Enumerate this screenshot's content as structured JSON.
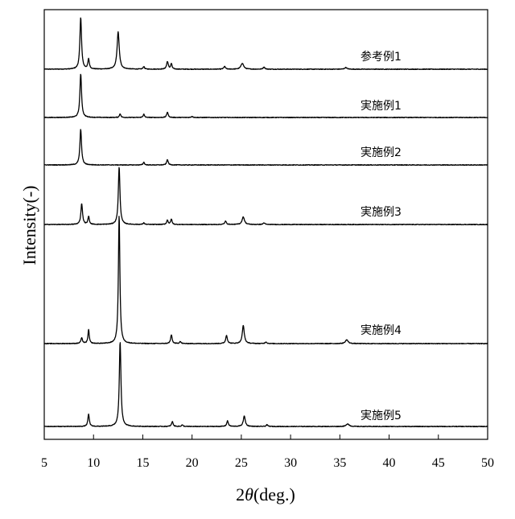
{
  "chart_data": {
    "type": "line",
    "title": "",
    "xlabel": "2θ(deg.)",
    "ylabel": "Intensity(-)",
    "xlim": [
      5,
      50
    ],
    "x_ticks": [
      5,
      10,
      15,
      20,
      25,
      30,
      35,
      40,
      45,
      50
    ],
    "y_ticks": [],
    "grid": false,
    "legend": "none",
    "layout": "stacked-offset",
    "series": [
      {
        "name": "参考例1",
        "peaks": [
          {
            "x": 8.7,
            "y": 0.95,
            "w": 0.1
          },
          {
            "x": 9.5,
            "y": 0.18,
            "w": 0.09
          },
          {
            "x": 12.5,
            "y": 0.68,
            "w": 0.13
          },
          {
            "x": 15.1,
            "y": 0.05,
            "w": 0.08
          },
          {
            "x": 17.5,
            "y": 0.14,
            "w": 0.1
          },
          {
            "x": 17.9,
            "y": 0.1,
            "w": 0.08
          },
          {
            "x": 23.3,
            "y": 0.05,
            "w": 0.1
          },
          {
            "x": 25.1,
            "y": 0.11,
            "w": 0.16
          },
          {
            "x": 27.3,
            "y": 0.04,
            "w": 0.1
          },
          {
            "x": 35.6,
            "y": 0.03,
            "w": 0.14
          }
        ]
      },
      {
        "name": "実施例1",
        "peaks": [
          {
            "x": 8.7,
            "y": 0.8,
            "w": 0.1
          },
          {
            "x": 12.7,
            "y": 0.07,
            "w": 0.08
          },
          {
            "x": 15.1,
            "y": 0.06,
            "w": 0.08
          },
          {
            "x": 17.5,
            "y": 0.1,
            "w": 0.09
          },
          {
            "x": 20.0,
            "y": 0.02,
            "w": 0.1
          }
        ]
      },
      {
        "name": "実施例2",
        "peaks": [
          {
            "x": 8.7,
            "y": 0.65,
            "w": 0.1
          },
          {
            "x": 15.1,
            "y": 0.05,
            "w": 0.08
          },
          {
            "x": 17.5,
            "y": 0.1,
            "w": 0.09
          }
        ]
      },
      {
        "name": "実施例3",
        "peaks": [
          {
            "x": 8.8,
            "y": 0.38,
            "w": 0.1
          },
          {
            "x": 9.5,
            "y": 0.15,
            "w": 0.08
          },
          {
            "x": 12.6,
            "y": 1.05,
            "w": 0.1
          },
          {
            "x": 15.1,
            "y": 0.03,
            "w": 0.08
          },
          {
            "x": 17.5,
            "y": 0.08,
            "w": 0.09
          },
          {
            "x": 17.9,
            "y": 0.1,
            "w": 0.08
          },
          {
            "x": 23.4,
            "y": 0.06,
            "w": 0.1
          },
          {
            "x": 25.2,
            "y": 0.14,
            "w": 0.14
          },
          {
            "x": 27.3,
            "y": 0.03,
            "w": 0.1
          }
        ]
      },
      {
        "name": "実施例4",
        "peaks": [
          {
            "x": 8.8,
            "y": 0.1,
            "w": 0.1
          },
          {
            "x": 9.5,
            "y": 0.25,
            "w": 0.08
          },
          {
            "x": 12.6,
            "y": 2.35,
            "w": 0.09
          },
          {
            "x": 17.9,
            "y": 0.16,
            "w": 0.09
          },
          {
            "x": 18.8,
            "y": 0.04,
            "w": 0.08
          },
          {
            "x": 23.5,
            "y": 0.15,
            "w": 0.1
          },
          {
            "x": 25.2,
            "y": 0.33,
            "w": 0.12
          },
          {
            "x": 27.5,
            "y": 0.03,
            "w": 0.1
          },
          {
            "x": 35.7,
            "y": 0.07,
            "w": 0.16
          }
        ]
      },
      {
        "name": "実施例5",
        "peaks": [
          {
            "x": 9.5,
            "y": 0.22,
            "w": 0.09
          },
          {
            "x": 12.7,
            "y": 1.55,
            "w": 0.1
          },
          {
            "x": 18.0,
            "y": 0.09,
            "w": 0.09
          },
          {
            "x": 19.0,
            "y": 0.03,
            "w": 0.08
          },
          {
            "x": 23.6,
            "y": 0.1,
            "w": 0.1
          },
          {
            "x": 25.3,
            "y": 0.19,
            "w": 0.12
          },
          {
            "x": 27.6,
            "y": 0.03,
            "w": 0.1
          },
          {
            "x": 35.8,
            "y": 0.05,
            "w": 0.16
          }
        ]
      }
    ]
  }
}
